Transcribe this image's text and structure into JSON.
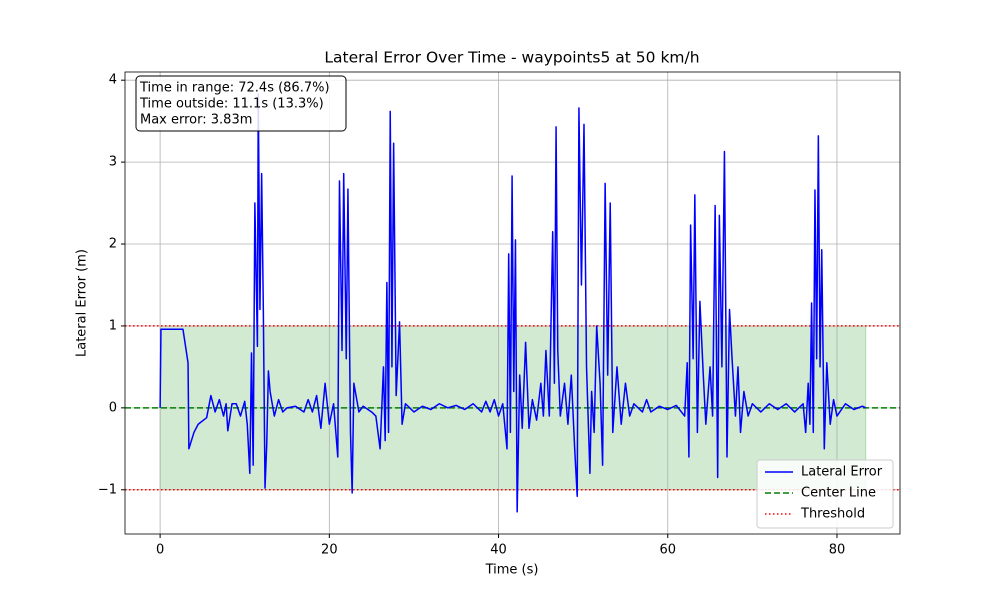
{
  "chart_data": {
    "type": "line",
    "title": "Lateral Error Over Time - waypoints5 at 50 km/h",
    "x_label": "Time (s)",
    "y_label": "Lateral Error (m)",
    "xlim": [
      -4.15,
      87.45
    ],
    "ylim": [
      -1.54,
      4.1
    ],
    "xticks": [
      0,
      20,
      40,
      60,
      80
    ],
    "yticks": [
      {
        "value": -1,
        "label": "−1"
      },
      0,
      1,
      2,
      3,
      4
    ],
    "grid": true,
    "legend": "lower right",
    "annotation": [
      "Time in range: 72.4s (86.7%)",
      "Time outside: 11.1s (13.3%)",
      "Max error: 3.83m"
    ],
    "band_color": "#2ca02c",
    "series": [
      {
        "name": "Lateral Error",
        "color": "#0000ff",
        "x": [
          0,
          0.1,
          2.7,
          3.3,
          3.4,
          4,
          4.5,
          5.5,
          6,
          6.5,
          7,
          7.5,
          7.8,
          8,
          8.5,
          9,
          9.5,
          10,
          10.3,
          10.6,
          10.8,
          11,
          11.2,
          11.5,
          11.6,
          11.8,
          12,
          12.2,
          12.4,
          12.6,
          12.8,
          13,
          13.5,
          14,
          14.5,
          15,
          16,
          17,
          17.5,
          18,
          18.5,
          19,
          19.5,
          20,
          20.5,
          21,
          21.2,
          21.5,
          21.7,
          22,
          22.2,
          22.5,
          22.7,
          22.9,
          23.5,
          24,
          25,
          25.5,
          26,
          26.4,
          26.6,
          26.8,
          27,
          27.2,
          27.4,
          27.6,
          27.9,
          28.3,
          28.6,
          29,
          30,
          31,
          32,
          33,
          34,
          35,
          36,
          37,
          38,
          38.5,
          39,
          39.5,
          40,
          40.5,
          41,
          41.2,
          41.4,
          41.6,
          41.8,
          42,
          42.2,
          42.5,
          42.8,
          43.2,
          43.6,
          44,
          44.5,
          45,
          45.3,
          45.6,
          46,
          46.4,
          46.6,
          46.8,
          47,
          47.3,
          47.8,
          48.2,
          48.6,
          49,
          49.3,
          49.5,
          49.8,
          50.1,
          50.4,
          50.8,
          51,
          51.3,
          51.6,
          52,
          52.3,
          52.6,
          52.9,
          53.2,
          53.5,
          54,
          54.5,
          55,
          55.5,
          56,
          57,
          57.5,
          58,
          59,
          60,
          61,
          62,
          62.3,
          62.5,
          62.7,
          63,
          63.2,
          63.5,
          63.8,
          64.2,
          64.5,
          65,
          65.3,
          65.6,
          65.9,
          66.1,
          66.4,
          66.7,
          67,
          67.3,
          67.6,
          68,
          68.3,
          68.6,
          69,
          69.5,
          70,
          71,
          72,
          73,
          74,
          75,
          76,
          76.3,
          76.6,
          76.8,
          77,
          77.2,
          77.4,
          77.6,
          77.8,
          78,
          78.2,
          78.5,
          78.8,
          79.2,
          79.6,
          80,
          81,
          82,
          83,
          83.4
        ],
        "values": [
          0,
          0.96,
          0.96,
          0.55,
          -0.5,
          -0.3,
          -0.2,
          -0.12,
          0.15,
          -0.05,
          0.1,
          -0.1,
          0.05,
          -0.28,
          0.05,
          0.05,
          -0.1,
          0.08,
          -0.2,
          -0.8,
          0.67,
          -0.7,
          2.5,
          0.75,
          3.83,
          1.2,
          2.86,
          1.2,
          -0.98,
          -0.45,
          0.45,
          0.2,
          -0.1,
          0.1,
          -0.05,
          0,
          0.02,
          -0.05,
          0.1,
          -0.05,
          0.15,
          -0.25,
          0.3,
          -0.2,
          0.05,
          -0.6,
          2.77,
          0.7,
          2.86,
          0.6,
          2.67,
          -0.3,
          -1.04,
          0.3,
          -0.05,
          0.02,
          -0.05,
          -0.1,
          -0.5,
          0.5,
          -0.4,
          1.53,
          -0.3,
          3.62,
          0.5,
          3.23,
          0.15,
          1.05,
          -0.2,
          0.05,
          -0.05,
          0.02,
          -0.02,
          0.05,
          0,
          0.03,
          -0.02,
          0.05,
          -0.05,
          0.08,
          -0.05,
          0.1,
          -0.1,
          0.05,
          -0.5,
          1.88,
          -0.3,
          2.83,
          0.2,
          2.05,
          -1.27,
          0.4,
          -0.25,
          0.8,
          -0.25,
          0.1,
          -0.15,
          0.3,
          -0.1,
          0.7,
          -0.1,
          2.15,
          0.3,
          3.43,
          0.7,
          -0.1,
          0.3,
          -0.2,
          0.4,
          -0.5,
          -1.08,
          3.66,
          1.5,
          3.46,
          0.5,
          -0.8,
          0.2,
          -0.3,
          1.0,
          0.3,
          -0.7,
          2.74,
          0.4,
          2.5,
          -0.3,
          0.5,
          -0.2,
          0.3,
          -0.1,
          0.05,
          -0.05,
          0.1,
          -0.05,
          0.02,
          -0.02,
          0.03,
          -0.1,
          0.55,
          -0.6,
          2.23,
          0.6,
          2.6,
          -0.3,
          1.3,
          0.4,
          -0.2,
          0.5,
          -0.1,
          2.47,
          -0.85,
          2.35,
          0.5,
          3.13,
          -0.6,
          1.2,
          0.6,
          -0.1,
          0.5,
          -0.3,
          0.2,
          -0.1,
          0.05,
          -0.05,
          0.05,
          -0.02,
          0.05,
          -0.05,
          0.05,
          -0.3,
          0.3,
          -0.2,
          1.28,
          -0.3,
          2.66,
          0.6,
          3.32,
          0.5,
          1.93,
          -0.5,
          0.55,
          -0.2,
          0.1,
          -0.1,
          0.05,
          -0.02,
          0.02,
          0
        ]
      }
    ],
    "center_line": {
      "name": "Center Line",
      "color": "#008000",
      "value": 0
    },
    "threshold": {
      "name": "Threshold",
      "color": "#ff0000",
      "values": [
        -1,
        1
      ]
    }
  }
}
